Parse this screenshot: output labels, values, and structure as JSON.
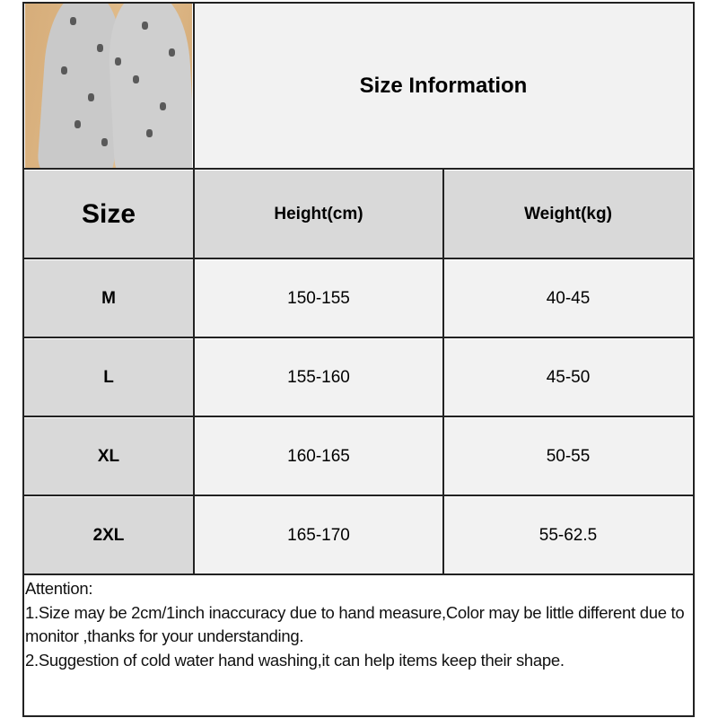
{
  "title": "Size Information",
  "photo": {
    "alt": "gray patterned pants"
  },
  "table": {
    "headers": [
      "Size",
      "Height(cm)",
      "Weight(kg)"
    ],
    "rows": [
      {
        "size": "M",
        "height": "150-155",
        "weight": "40-45"
      },
      {
        "size": "L",
        "height": "155-160",
        "weight": "45-50"
      },
      {
        "size": "XL",
        "height": "160-165",
        "weight": "50-55"
      },
      {
        "size": "2XL",
        "height": "165-170",
        "weight": "55-62.5"
      }
    ]
  },
  "notes": {
    "heading": "Attention:",
    "lines": [
      "1.Size may be 2cm/1inch inaccuracy due to hand measure,Color may be little different due to monitor ,thanks for your understanding.",
      "2.Suggestion of cold water hand washing,it can help items keep their shape."
    ]
  },
  "colors": {
    "header_gray": "#d9d9d9",
    "cell_light": "#f2f2f2",
    "border": "#222222"
  }
}
